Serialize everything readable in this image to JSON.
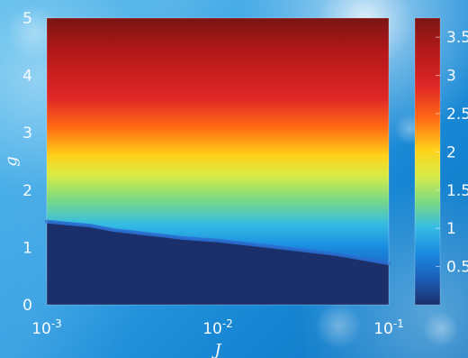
{
  "chart_data": {
    "type": "heatmap",
    "title": "",
    "xlabel": "J",
    "ylabel": "g",
    "x_scale": "log",
    "xlim": [
      0.001,
      0.1
    ],
    "ylim": [
      0,
      5
    ],
    "x_ticks": [
      {
        "value": 0.001,
        "mantissa": "10",
        "exponent": "-3"
      },
      {
        "value": 0.01,
        "mantissa": "10",
        "exponent": "-2"
      },
      {
        "value": 0.1,
        "mantissa": "10",
        "exponent": "-1"
      }
    ],
    "y_ticks": [
      0,
      1,
      2,
      3,
      4,
      5
    ],
    "grid": false,
    "colorbar": {
      "range": [
        0,
        3.75
      ],
      "ticks": [
        0.5,
        1,
        1.5,
        2,
        2.5,
        3,
        3.5
      ],
      "tick_labels": [
        "0.5",
        "1",
        "1.5",
        "2",
        "2.5",
        "3",
        "3.5"
      ],
      "colormap": "jet"
    },
    "threshold_boundary": {
      "j": [
        0.001,
        0.0018,
        0.0025,
        0.0033,
        0.004,
        0.005,
        0.006,
        0.008,
        0.01,
        0.02,
        0.05,
        0.1
      ],
      "g": [
        1.45,
        1.38,
        1.3,
        1.26,
        1.23,
        1.2,
        1.17,
        1.14,
        1.12,
        1.02,
        0.88,
        0.72
      ]
    }
  },
  "colors": {
    "low": "#1b2f6b",
    "high": "#7a1414",
    "background": "#2f9ee3"
  }
}
